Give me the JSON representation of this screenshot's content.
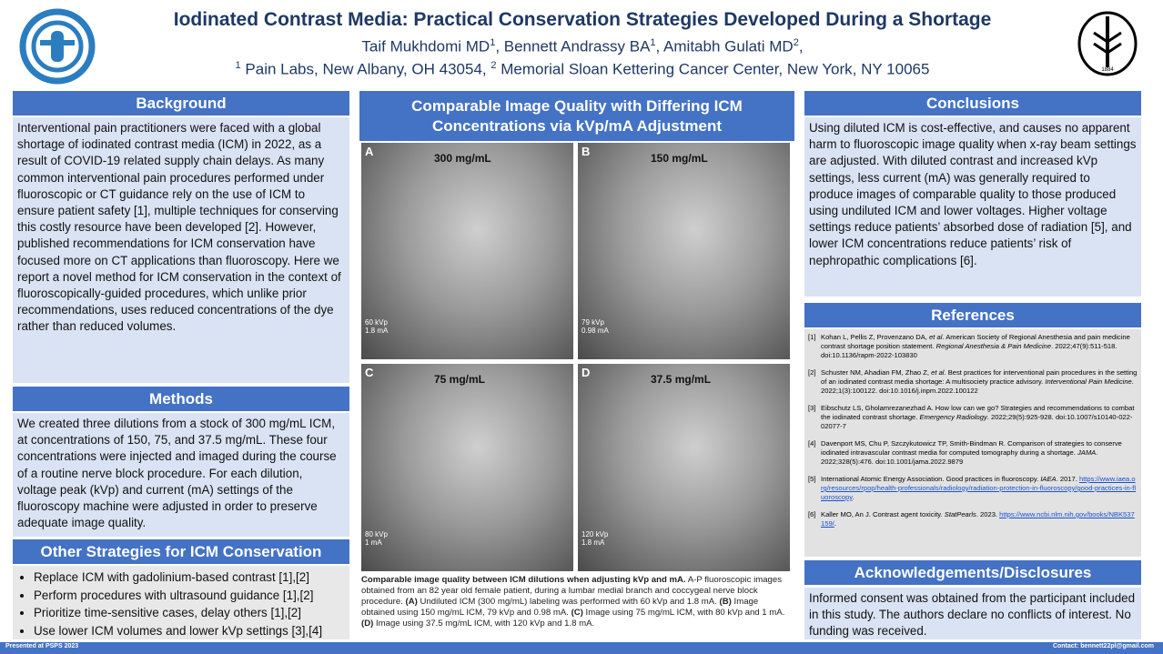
{
  "header": {
    "title": "Iodinated Contrast Media: Practical Conservation Strategies Developed During a Shortage",
    "authors": [
      {
        "name": "Taif Mukhdomi MD",
        "sup": "1"
      },
      {
        "name": ", Bennett Andrassy BA",
        "sup": "1"
      },
      {
        "name": ", Amitabh Gulati MD",
        "sup": "2",
        "after": ","
      }
    ],
    "affiliations": [
      {
        "sup": "1",
        "text": " Pain Labs, New Albany, OH 43054, "
      },
      {
        "sup": "2",
        "text": " Memorial Sloan Kettering Cancer Center, New York, NY 10065"
      }
    ],
    "logo_right_year": "1884"
  },
  "background": {
    "heading": "Background",
    "text": "Interventional pain practitioners were faced with a global shortage of iodinated contrast media (ICM) in 2022, as a result of COVID-19 related supply chain delays. As many common interventional pain procedures performed under fluoroscopic or CT guidance rely on the use of ICM to ensure patient safety [1], multiple techniques for conserving this costly resource have been developed [2]. However, published recommendations for ICM conservation have focused more on CT applications than fluoroscopy. Here we report a novel method for ICM conservation in the context of fluoroscopically-guided procedures, which unlike prior recommendations, uses reduced concentrations of the dye rather than reduced volumes."
  },
  "methods": {
    "heading": "Methods",
    "text": "We created three dilutions from a stock of 300 mg/mL ICM, at concentrations of 150, 75, and 37.5 mg/mL. These four concentrations were injected and imaged during the course of a routine nerve block procedure. For each dilution, voltage peak (kVp) and current (mA) settings of the fluoroscopy machine were adjusted in order to preserve adequate image quality."
  },
  "other_strategies": {
    "heading": "Other Strategies for ICM Conservation",
    "items": [
      "Replace ICM with gadolinium-based contrast [1],[2]",
      "Perform procedures with ultrasound guidance [1],[2]",
      "Prioritize time-sensitive cases, delay others [1],[2]",
      "Use lower ICM volumes and lower kVp settings [3],[4]"
    ]
  },
  "figure": {
    "heading": "Comparable Image Quality with Differing ICM Concentrations via kVp/mA Adjustment",
    "panels": [
      {
        "letter": "A",
        "concentration": "300 mg/mL",
        "kvp": "60 kVp",
        "ma": "1.8 mA"
      },
      {
        "letter": "B",
        "concentration": "150 mg/mL",
        "kvp": "79 kVp",
        "ma": "0.98 mA"
      },
      {
        "letter": "C",
        "concentration": "75 mg/mL",
        "kvp": "80 kVp",
        "ma": "1 mA"
      },
      {
        "letter": "D",
        "concentration": "37.5 mg/mL",
        "kvp": "120 kVp",
        "ma": "1.8 mA"
      }
    ],
    "caption": [
      {
        "text": "Comparable image quality between ICM dilutions when adjusting kVp and mA.",
        "style": "bold"
      },
      {
        "text": " A-P fluoroscopic images obtained from an 82 year old female patient, during a lumbar medial branch and coccygeal nerve block procedure. "
      },
      {
        "text": "(A)",
        "style": "bold"
      },
      {
        "text": " Undiluted ICM (300 mg/mL) labeling was performed with 60 kVp and 1.8 mA. "
      },
      {
        "text": "(B)",
        "style": "bold"
      },
      {
        "text": " Image obtained using 150 mg/mL ICM, 79 kVp and 0.98 mA. "
      },
      {
        "text": "(C)",
        "style": "bold"
      },
      {
        "text": " Image using 75 mg/mL ICM, with 80 kVp and 1 mA. "
      },
      {
        "text": "(D)",
        "style": "bold"
      },
      {
        "text": " Image using 37.5 mg/mL ICM, with 120 kVp and 1.8 mA."
      }
    ]
  },
  "conclusions": {
    "heading": "Conclusions",
    "text": "Using diluted ICM is cost-effective, and causes no apparent harm to fluoroscopic image quality when x-ray beam settings are adjusted. With diluted contrast and increased kVp settings, less current (mA) was generally required to produce images of comparable quality to those produced using undiluted ICM and lower voltages. Higher voltage settings reduce patients’ absorbed dose of radiation [5], and lower ICM concentrations reduce patients’ risk of nephropathic complications [6]."
  },
  "references": {
    "heading": "References",
    "items": [
      {
        "num": "[1]",
        "segments": [
          {
            "text": "Kohan L, Pellis Z, Provenzano DA, "
          },
          {
            "text": "et al",
            "style": "italic"
          },
          {
            "text": ". American Society of Regional Anesthesia and pain medicine contrast shortage position statement. "
          },
          {
            "text": "Regional Anesthesia & Pain Medicine",
            "style": "italic"
          },
          {
            "text": ". 2022;47(9):511-518. doi:10.1136/rapm-2022-103830"
          }
        ]
      },
      {
        "num": "[2]",
        "segments": [
          {
            "text": "Schuster NM, Ahadian FM, Zhao Z, "
          },
          {
            "text": "et al",
            "style": "italic"
          },
          {
            "text": ". Best practices for interventional pain procedures in the setting of an iodinated contrast media shortage: A multisociety practice advisory. "
          },
          {
            "text": "Interventional Pain Medicine",
            "style": "italic"
          },
          {
            "text": ". 2022;1(3):100122. doi:10.1016/j.inpm.2022.100122"
          }
        ]
      },
      {
        "num": "[3]",
        "segments": [
          {
            "text": "Eibschutz LS, Gholamrezanezhad A. How low can we go? Strategies and recommendations to combat the iodinated contrast shortage. "
          },
          {
            "text": "Emergency Radiology",
            "style": "italic"
          },
          {
            "text": ". 2022;29(5):925-928. doi:10.1007/s10140-022-02077-7"
          }
        ]
      },
      {
        "num": "[4]",
        "segments": [
          {
            "text": "Davenport MS, Chu P, Szczykutowicz TP, Smith-Bindman R. Comparison of strategies to conserve iodinated intravascular contrast media for computed tomography during a shortage. "
          },
          {
            "text": "JAMA",
            "style": "italic"
          },
          {
            "text": ". 2022;328(5):476. doi:10.1001/jama.2022.9879"
          }
        ]
      },
      {
        "num": "[5]",
        "segments": [
          {
            "text": "International Atomic Energy Association. Good practices in fluoroscopy. "
          },
          {
            "text": "IAEA",
            "style": "italic"
          },
          {
            "text": ". 2017. "
          },
          {
            "text": "https://www.iaea.org/resources/rpop/health-professionals/radiology/radiation-protection-in-fluoroscopy/good-practices-in-fluoroscopy",
            "style": "link"
          },
          {
            "text": "."
          }
        ]
      },
      {
        "num": "[6]",
        "segments": [
          {
            "text": "Kaller MO, An J. Contrast agent toxicity. "
          },
          {
            "text": "StatPearls",
            "style": "italic"
          },
          {
            "text": ". 2023. "
          },
          {
            "text": "https://www.ncbi.nlm.nih.gov/books/NBK537159/",
            "style": "link"
          },
          {
            "text": "."
          }
        ]
      }
    ]
  },
  "acknowledgements": {
    "heading": "Acknowledgements/Disclosures",
    "text": "Informed consent was obtained from the participant included in this study. The authors declare no conflicts of interest. No funding was received."
  },
  "footer": {
    "left": "Presented at PSPS 2023",
    "right": "Contact: bennett22pl@gmail.com"
  }
}
